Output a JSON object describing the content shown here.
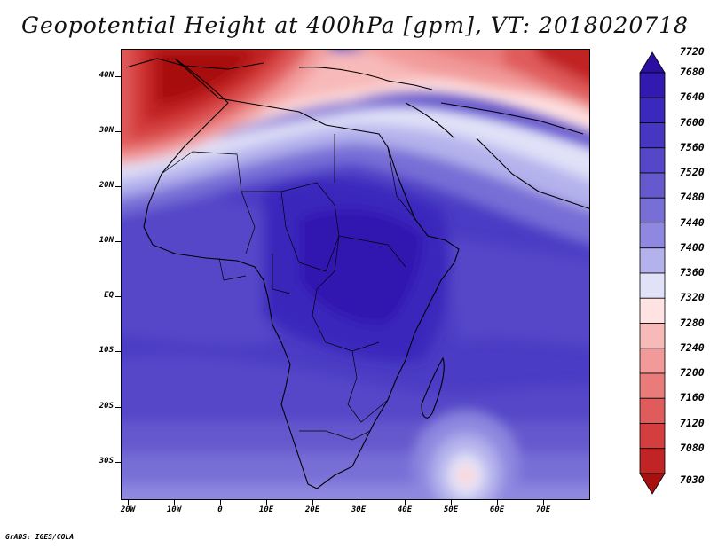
{
  "title": "Geopotential Height at 400hPa [gpm], VT: 2018020718",
  "credit": "GrADS: IGES/COLA",
  "map": {
    "variable": "Geopotential Height",
    "level": "400hPa",
    "units": "gpm",
    "valid_time": "2018020718",
    "lat_labels": [
      "40N",
      "30N",
      "20N",
      "10N",
      "EQ",
      "10S",
      "20S",
      "30S"
    ],
    "lon_labels": [
      "20W",
      "10W",
      "0",
      "10E",
      "20E",
      "30E",
      "40E",
      "50E",
      "60E",
      "70E"
    ]
  },
  "colorbar": {
    "levels": [
      "7720",
      "7680",
      "7640",
      "7600",
      "7560",
      "7520",
      "7480",
      "7440",
      "7400",
      "7360",
      "7320",
      "7280",
      "7240",
      "7200",
      "7160",
      "7120",
      "7080",
      "7030"
    ],
    "colors": [
      "#2a0fa0",
      "#3219b0",
      "#3b28bc",
      "#4636c2",
      "#5547c8",
      "#6559cd",
      "#776ed6",
      "#8e88e0",
      "#b4b2ec",
      "#e1e1f8",
      "#ffe3e3",
      "#f8b9b9",
      "#f29a9a",
      "#e97b7b",
      "#e05c5c",
      "#d43e3e",
      "#c12424",
      "#a81010"
    ]
  }
}
